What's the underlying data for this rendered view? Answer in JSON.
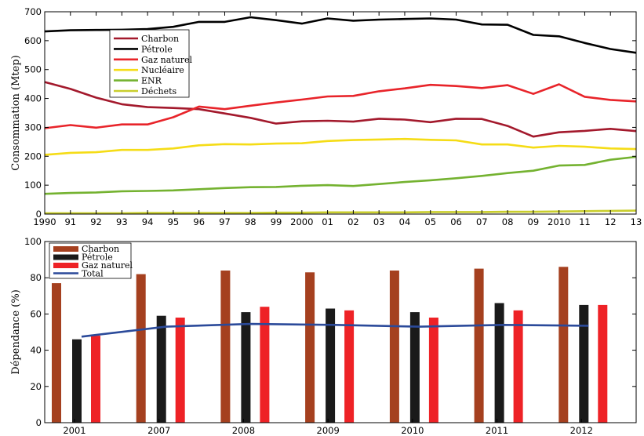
{
  "chart_data": [
    {
      "type": "line",
      "ylabel": "Consommation (Mtep)",
      "ylim": [
        0,
        700
      ],
      "yticks": [
        0,
        100,
        200,
        300,
        400,
        500,
        600,
        700
      ],
      "x": [
        1990,
        1991,
        1992,
        1993,
        1994,
        1995,
        1996,
        1997,
        1998,
        1999,
        2000,
        2001,
        2002,
        2003,
        2004,
        2005,
        2006,
        2007,
        2008,
        2009,
        2010,
        2011,
        2012,
        2013
      ],
      "x_tick_labels": [
        "1990",
        "91",
        "92",
        "93",
        "94",
        "95",
        "96",
        "97",
        "98",
        "99",
        "2000",
        "01",
        "02",
        "03",
        "04",
        "05",
        "06",
        "07",
        "08",
        "09",
        "2010",
        "11",
        "12",
        "13"
      ],
      "legend_position": "top-left",
      "grid": false,
      "series": [
        {
          "name": "Charbon",
          "color": "#a3192c",
          "values": [
            457,
            433,
            403,
            380,
            370,
            367,
            363,
            348,
            333,
            313,
            321,
            323,
            320,
            330,
            327,
            318,
            330,
            329,
            305,
            268,
            283,
            288,
            295,
            287
          ]
        },
        {
          "name": "Pétrole",
          "color": "#000000",
          "values": [
            632,
            636,
            637,
            638,
            640,
            648,
            665,
            665,
            681,
            671,
            659,
            677,
            669,
            673,
            675,
            677,
            673,
            656,
            655,
            620,
            615,
            592,
            571,
            558
          ]
        },
        {
          "name": "Gaz naturel",
          "color": "#e8242a",
          "values": [
            297,
            308,
            299,
            310,
            310,
            335,
            372,
            363,
            375,
            386,
            396,
            407,
            409,
            425,
            435,
            447,
            443,
            436,
            446,
            416,
            449,
            406,
            395,
            390
          ]
        },
        {
          "name": "Nucléaire",
          "color": "#f5dc16",
          "values": [
            205,
            212,
            214,
            222,
            222,
            227,
            238,
            242,
            241,
            244,
            245,
            253,
            256,
            258,
            260,
            257,
            255,
            241,
            241,
            230,
            236,
            233,
            227,
            225
          ]
        },
        {
          "name": "ENR",
          "color": "#74b230",
          "values": [
            70,
            73,
            75,
            79,
            80,
            82,
            86,
            90,
            93,
            94,
            98,
            100,
            97,
            104,
            111,
            117,
            124,
            132,
            142,
            150,
            168,
            170,
            188,
            198
          ]
        },
        {
          "name": "Déchets",
          "color": "#c9ce2d",
          "values": [
            3,
            3,
            3,
            3,
            4,
            4,
            4,
            4,
            4,
            5,
            5,
            6,
            6,
            6,
            6,
            7,
            7,
            7,
            8,
            8,
            9,
            10,
            11,
            12
          ]
        }
      ]
    },
    {
      "type": "bar",
      "ylabel": "Dépendance (%)",
      "ylim": [
        0,
        100
      ],
      "yticks": [
        0,
        20,
        40,
        60,
        80,
        100
      ],
      "categories": [
        "2001",
        "2007",
        "2008",
        "2009",
        "2010",
        "2011",
        "2012"
      ],
      "legend_position": "top-left",
      "grid": false,
      "series": [
        {
          "name": "Charbon",
          "color": "#a5401f",
          "values": [
            77,
            82,
            84,
            83,
            84,
            85,
            86
          ]
        },
        {
          "name": "Pétrole",
          "color": "#1a1a1a",
          "values": [
            46,
            59,
            61,
            63,
            61,
            66,
            65
          ]
        },
        {
          "name": "Gaz naturel",
          "color": "#ee2226",
          "values": [
            48,
            58,
            64,
            62,
            58,
            62,
            65
          ]
        }
      ],
      "line_series": {
        "name": "Total",
        "color": "#2b4a9a",
        "values": [
          47.5,
          53,
          54.5,
          54,
          53,
          54,
          53.5
        ]
      }
    }
  ]
}
